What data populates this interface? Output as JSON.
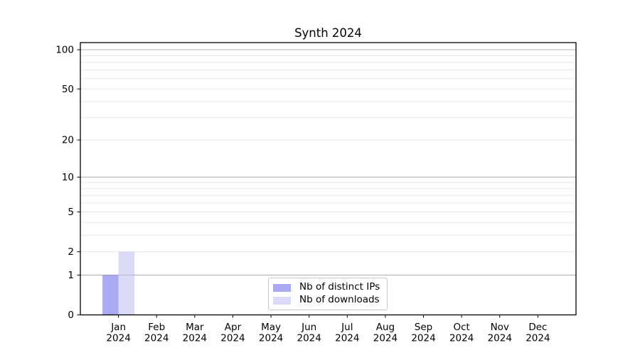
{
  "chart_data": {
    "type": "bar",
    "title": "Synth 2024",
    "xlabel": "",
    "ylabel": "",
    "yscale": "log1p",
    "ylim": [
      0,
      113
    ],
    "grid": true,
    "x_tick_labels": [
      {
        "month": "Jan",
        "year": "2024"
      },
      {
        "month": "Feb",
        "year": "2024"
      },
      {
        "month": "Mar",
        "year": "2024"
      },
      {
        "month": "Apr",
        "year": "2024"
      },
      {
        "month": "May",
        "year": "2024"
      },
      {
        "month": "Jun",
        "year": "2024"
      },
      {
        "month": "Jul",
        "year": "2024"
      },
      {
        "month": "Aug",
        "year": "2024"
      },
      {
        "month": "Sep",
        "year": "2024"
      },
      {
        "month": "Oct",
        "year": "2024"
      },
      {
        "month": "Nov",
        "year": "2024"
      },
      {
        "month": "Dec",
        "year": "2024"
      }
    ],
    "y_tick_labels": [
      0,
      1,
      2,
      5,
      10,
      20,
      50,
      100
    ],
    "y_major_gridlines": [
      1,
      10,
      100
    ],
    "y_minor_gridlines": [
      2,
      3,
      4,
      5,
      6,
      7,
      8,
      9,
      20,
      30,
      40,
      50,
      60,
      70,
      80,
      90
    ],
    "series": [
      {
        "name": "Nb of distinct IPs",
        "base_color": "#5555e5",
        "fill_alpha": 0.5,
        "effective_color": "#aaaaf2",
        "values": [
          1,
          0,
          0,
          0,
          0,
          0,
          0,
          0,
          0,
          0,
          0,
          0
        ]
      },
      {
        "name": "Nb of downloads",
        "base_color": "#b8b8f0",
        "fill_alpha": 0.5,
        "effective_color": "#dcdcf8",
        "values": [
          2,
          0,
          0,
          0,
          0,
          0,
          0,
          0,
          0,
          0,
          0,
          0
        ]
      }
    ],
    "legend": {
      "position": "lower center"
    },
    "colors": {
      "grid_major": "#b4b4b4",
      "grid_minor": "#e8e8e8",
      "spine": "#000000",
      "tick_text": "#000000",
      "background": "#ffffff"
    }
  }
}
